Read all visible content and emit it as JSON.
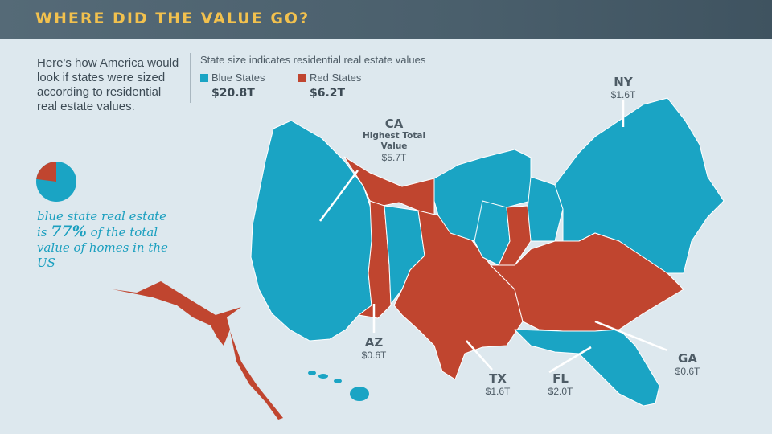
{
  "header": {
    "title": "WHERE DID THE VALUE GO?"
  },
  "intro": {
    "text": "Here's how America would look if states were sized according to residential real estate values."
  },
  "pie": {
    "blue_share_percent": 77,
    "colors": {
      "blue": "#1aa4c4",
      "red": "#c0452f"
    }
  },
  "caption": {
    "line_before": "blue state real estate is",
    "percent": "77%",
    "line_after": "of the total value of homes in the US"
  },
  "legend": {
    "title": "State size indicates residential real estate values",
    "items": [
      {
        "label": "Blue States",
        "value": "$20.8T",
        "color": "#1aa4c4"
      },
      {
        "label": "Red States",
        "value": "$6.2T",
        "color": "#c0452f"
      }
    ]
  },
  "callouts": {
    "ny": {
      "state": "NY",
      "value": "$1.6T"
    },
    "ca": {
      "state": "CA",
      "note": "Highest Total Value",
      "value": "$5.7T"
    },
    "az": {
      "state": "AZ",
      "value": "$0.6T"
    },
    "tx": {
      "state": "TX",
      "value": "$1.6T"
    },
    "fl": {
      "state": "FL",
      "value": "$2.0T"
    },
    "ga": {
      "state": "GA",
      "value": "$0.6T"
    }
  }
}
